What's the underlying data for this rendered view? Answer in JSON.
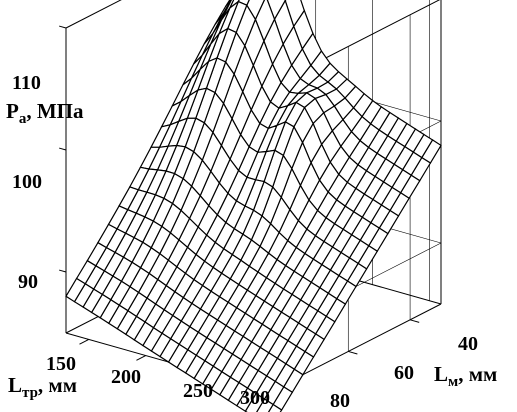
{
  "chart_data": {
    "type": "surface3d",
    "title": "",
    "zlabel": "Pa, МПа",
    "zlabel_main": "P",
    "zlabel_sub": "a",
    "zlabel_rest": ", МПа",
    "xlabel": "Lтр, мм",
    "xlabel_main": "L",
    "xlabel_sub": "тр",
    "xlabel_rest": ", мм",
    "ylabel": "Lм, мм",
    "ylabel_main": "L",
    "ylabel_sub": "м",
    "ylabel_rest": ", мм",
    "x_ticks": [
      "150",
      "200",
      "250",
      "300"
    ],
    "y_ticks": [
      "40",
      "60",
      "80"
    ],
    "z_ticks": [
      "90",
      "100",
      "110"
    ],
    "xlim": [
      130,
      310
    ],
    "ylim": [
      30,
      85
    ],
    "zlim": [
      85,
      110
    ],
    "grid": true,
    "approx_corner_values": [
      {
        "x": 130,
        "y": 30,
        "z": 99.5
      },
      {
        "x": 130,
        "y": 85,
        "z": 82
      },
      {
        "x": 310,
        "y": 30,
        "z": 95
      },
      {
        "x": 310,
        "y": 85,
        "z": 86
      }
    ],
    "approx_peak": {
      "x": 160,
      "y": 35,
      "z": 108
    },
    "line_color": "#000000",
    "surface_color": "#ffffff"
  }
}
